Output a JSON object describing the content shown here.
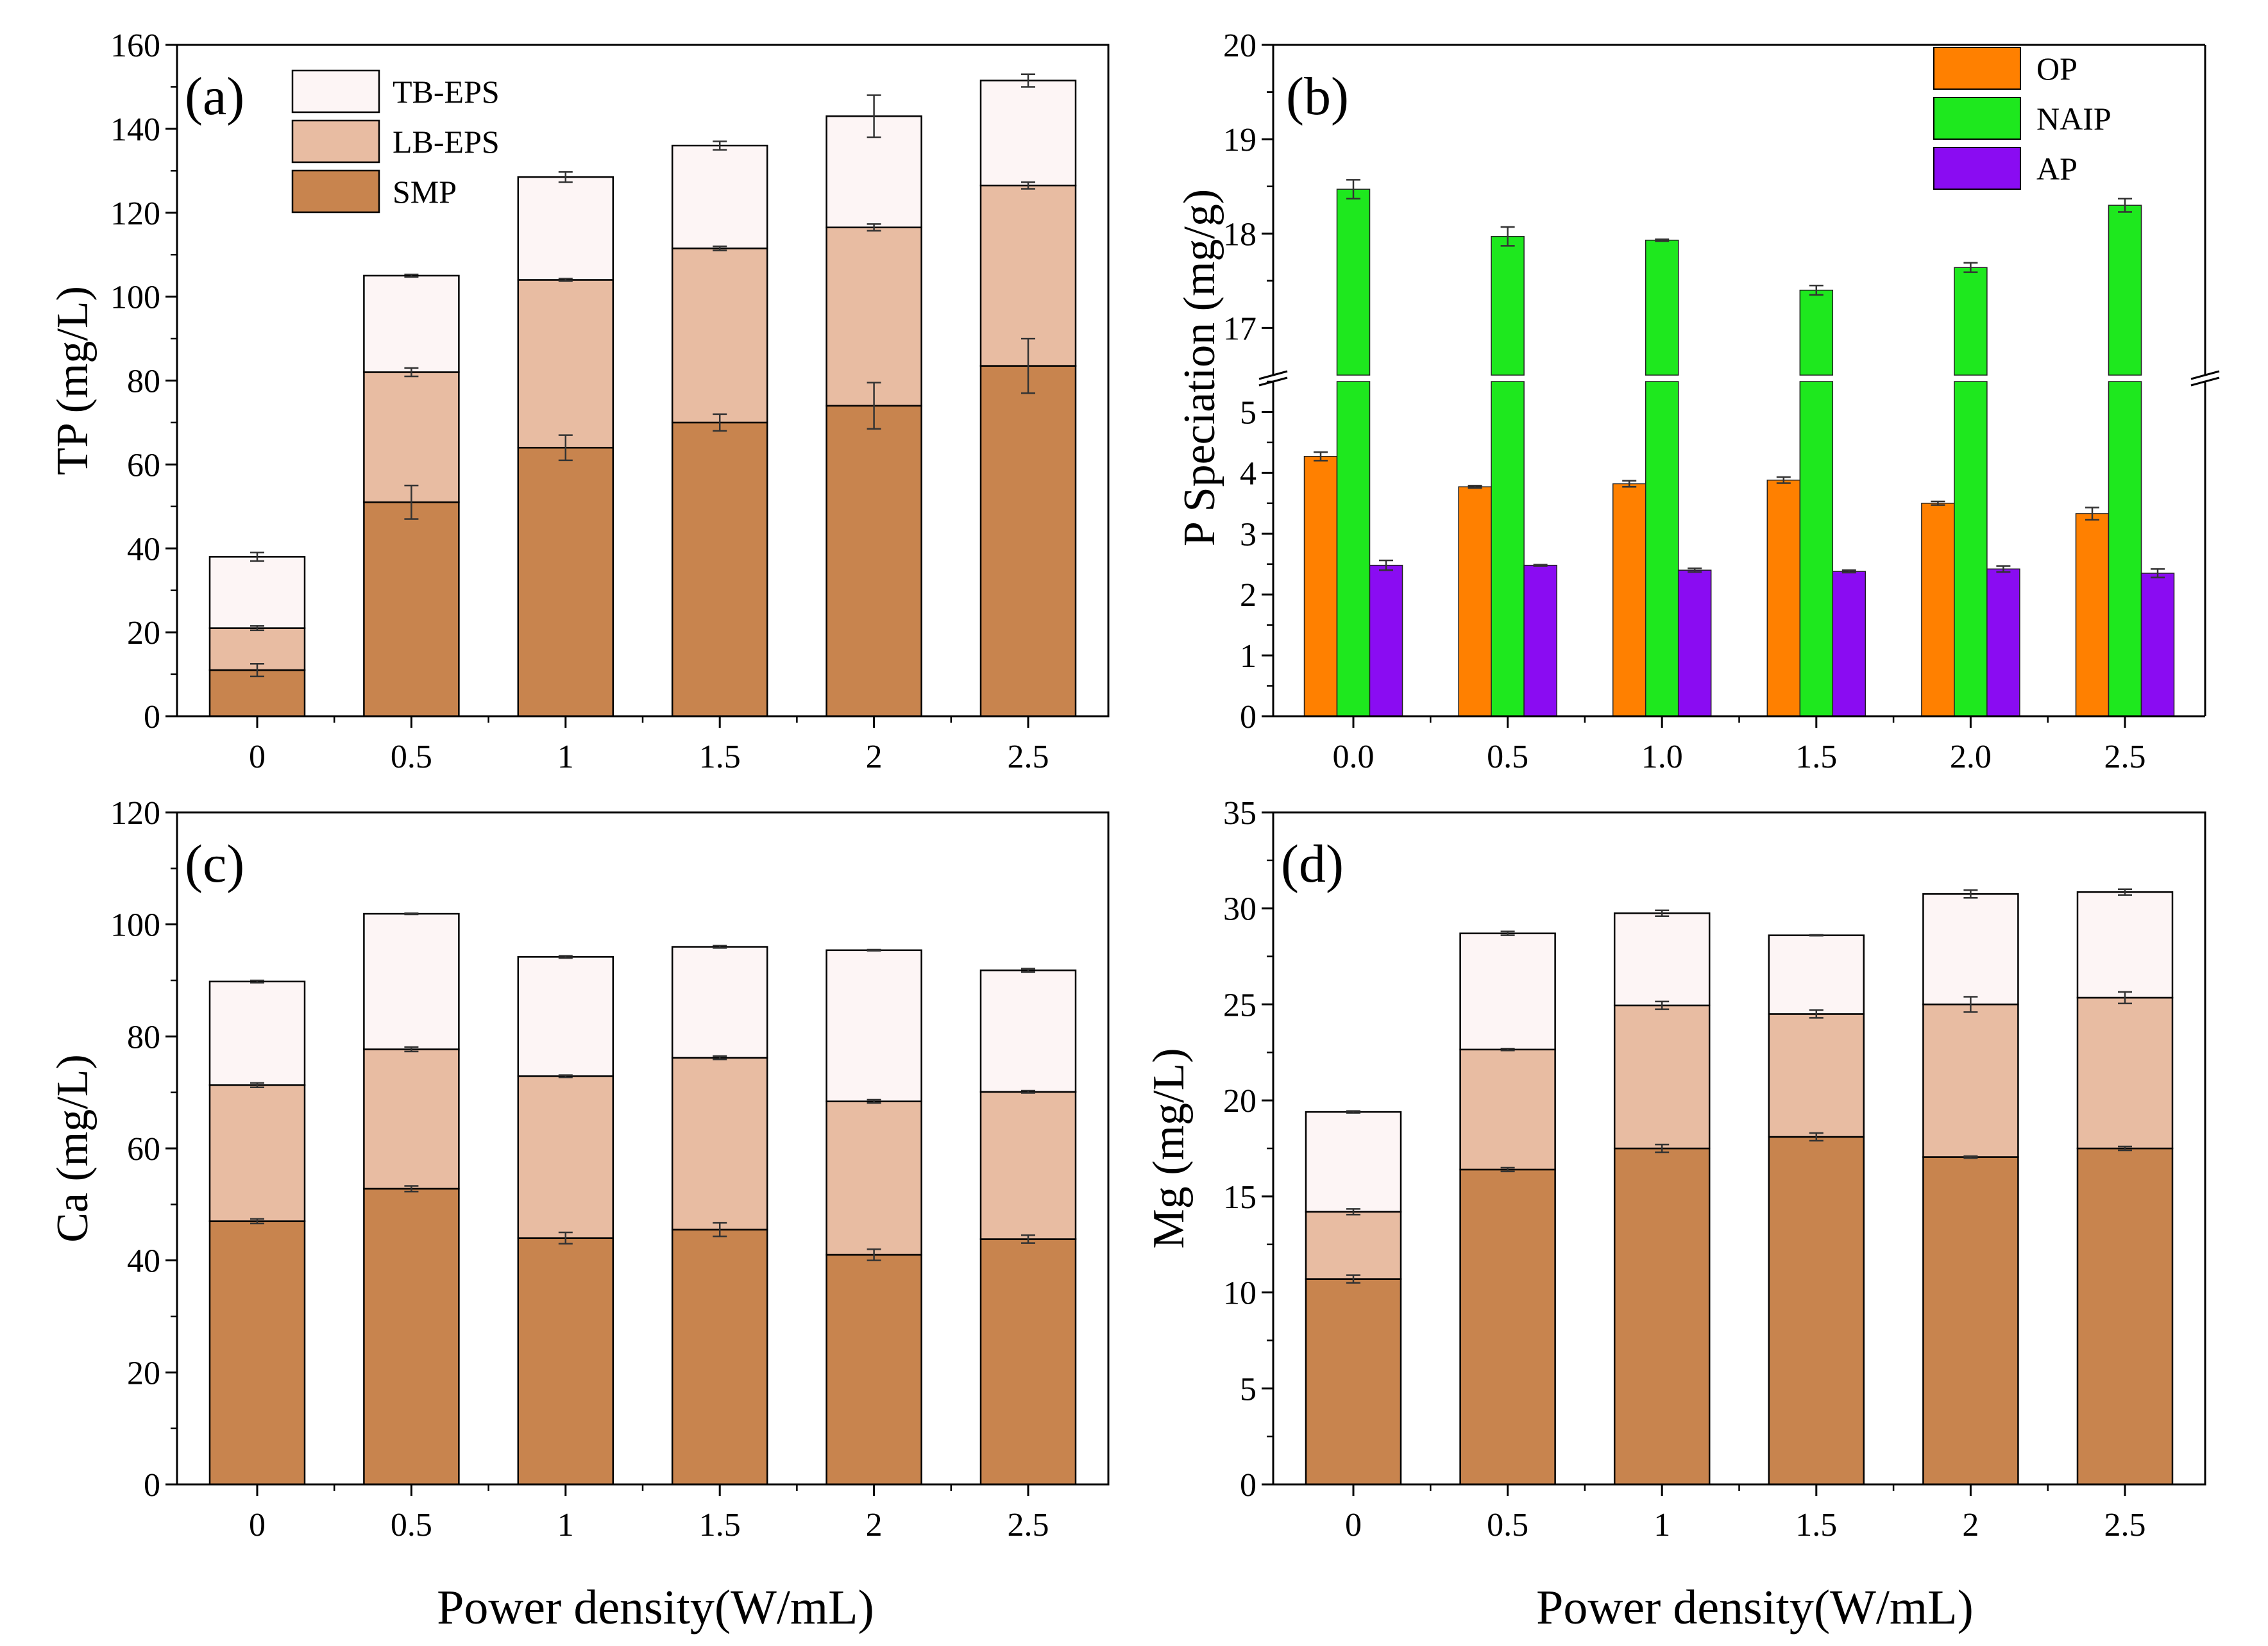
{
  "figure": {
    "shared_xlabel": "Power density(W/mL)"
  },
  "colors": {
    "SMP": "#c8844e",
    "LB-EPS": "#e8bca2",
    "TB-EPS": "#fdf5f5",
    "OP": "#ff8000",
    "NAIP": "#1ee81e",
    "AP": "#8a0cf2"
  },
  "chart_data": [
    {
      "id": "a",
      "panel_label": "(a)",
      "type": "bar",
      "stacked": true,
      "ylabel": "TP (mg/L)",
      "ylim": [
        0,
        160
      ],
      "ytick_labels": [
        "0",
        "20",
        "40",
        "60",
        "80",
        "100",
        "120",
        "140",
        "160"
      ],
      "categories": [
        "0",
        "0.5",
        "1",
        "1.5",
        "2",
        "2.5"
      ],
      "legend": [
        "TB-EPS",
        "LB-EPS",
        "SMP"
      ],
      "series": [
        {
          "name": "SMP",
          "values": [
            11,
            51,
            64,
            70,
            74,
            83.5
          ],
          "errors": [
            1.5,
            4,
            3,
            2,
            5.5,
            6.5
          ]
        },
        {
          "name": "LB-EPS",
          "values": [
            10,
            31,
            40,
            41.5,
            42.5,
            43
          ],
          "errors": [
            0.5,
            1,
            0.3,
            0.5,
            0.8,
            0.8
          ]
        },
        {
          "name": "TB-EPS",
          "values": [
            17,
            23,
            24.5,
            24.5,
            26.5,
            25
          ],
          "errors": [
            1,
            0.3,
            1.2,
            1,
            5,
            1.5
          ]
        }
      ]
    },
    {
      "id": "b",
      "panel_label": "(b)",
      "type": "bar",
      "stacked": false,
      "ylabel": "P Speciation (mg/g)",
      "broken_axis": true,
      "ylim_lower": [
        0,
        5.5
      ],
      "ylim_upper": [
        16.5,
        20
      ],
      "ytick_labels_lower": [
        "0",
        "1",
        "2",
        "3",
        "4",
        "5"
      ],
      "ytick_labels_upper": [
        "17",
        "18",
        "19",
        "20"
      ],
      "categories": [
        "0.0",
        "0.5",
        "1.0",
        "1.5",
        "2.0",
        "2.5"
      ],
      "legend": [
        "OP",
        "NAIP",
        "AP"
      ],
      "series": [
        {
          "name": "OP",
          "values": [
            4.27,
            3.77,
            3.82,
            3.88,
            3.5,
            3.33
          ],
          "errors": [
            0.07,
            0.02,
            0.05,
            0.05,
            0.03,
            0.1
          ]
        },
        {
          "name": "NAIP",
          "values": [
            18.47,
            17.97,
            17.93,
            17.4,
            17.64,
            18.3
          ],
          "errors": [
            0.1,
            0.1,
            0.01,
            0.05,
            0.05,
            0.07
          ]
        },
        {
          "name": "AP",
          "values": [
            2.48,
            2.48,
            2.4,
            2.38,
            2.42,
            2.35
          ],
          "errors": [
            0.08,
            0.01,
            0.03,
            0.02,
            0.05,
            0.07
          ]
        }
      ]
    },
    {
      "id": "c",
      "panel_label": "(c)",
      "type": "bar",
      "stacked": true,
      "ylabel": "Ca (mg/L)",
      "ylim": [
        0,
        120
      ],
      "ytick_labels": [
        "0",
        "20",
        "40",
        "60",
        "80",
        "100",
        "120"
      ],
      "categories": [
        "0",
        "0.5",
        "1",
        "1.5",
        "2",
        "2.5"
      ],
      "series": [
        {
          "name": "SMP",
          "values": [
            47,
            52.8,
            44,
            45.5,
            41,
            43.8
          ],
          "errors": [
            0.4,
            0.5,
            1,
            1.2,
            1,
            0.7
          ]
        },
        {
          "name": "LB-EPS",
          "values": [
            24.3,
            24.9,
            28.9,
            30.7,
            27.4,
            26.3
          ],
          "errors": [
            0.4,
            0.4,
            0.2,
            0.3,
            0.3,
            0.2
          ]
        },
        {
          "name": "TB-EPS",
          "values": [
            18.5,
            24.2,
            21.3,
            19.8,
            27,
            21.7
          ],
          "errors": [
            0.2,
            0.1,
            0.2,
            0.2,
            0.1,
            0.3
          ]
        }
      ]
    },
    {
      "id": "d",
      "panel_label": "(d)",
      "type": "bar",
      "stacked": true,
      "ylabel": "Mg (mg/L)",
      "ylim": [
        0,
        35
      ],
      "ytick_labels": [
        "0",
        "5",
        "10",
        "15",
        "20",
        "25",
        "30",
        "35"
      ],
      "categories": [
        "0",
        "0.5",
        "1",
        "1.5",
        "2",
        "2.5"
      ],
      "series": [
        {
          "name": "SMP",
          "values": [
            10.7,
            16.4,
            17.5,
            18.1,
            17.05,
            17.5
          ],
          "errors": [
            0.2,
            0.1,
            0.2,
            0.2,
            0.05,
            0.1
          ]
        },
        {
          "name": "LB-EPS",
          "values": [
            3.5,
            6.25,
            7.45,
            6.4,
            7.95,
            7.85
          ],
          "errors": [
            0.15,
            0.05,
            0.2,
            0.2,
            0.4,
            0.3
          ]
        },
        {
          "name": "TB-EPS",
          "values": [
            5.2,
            6.05,
            4.8,
            4.1,
            5.75,
            5.5
          ],
          "errors": [
            0.05,
            0.1,
            0.15,
            0.02,
            0.2,
            0.15
          ]
        }
      ]
    }
  ]
}
